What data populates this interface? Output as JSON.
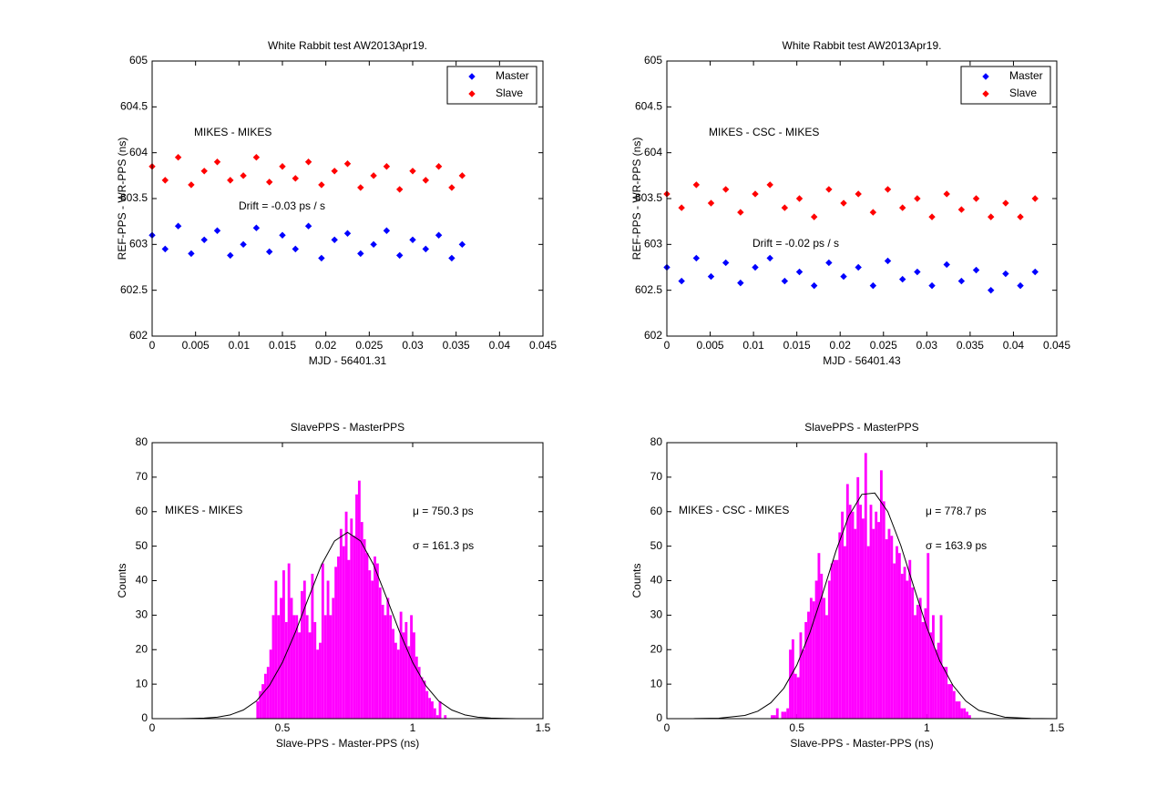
{
  "chart_data": [
    {
      "type": "scatter",
      "title": "White Rabbit test AW2013Apr19.",
      "xlabel": "MJD - 56401.31",
      "ylabel": "REF-PPS - WR-PPS (ns)",
      "annotations": [
        "MIKES - MIKES",
        "Drift = -0.03 ps / s"
      ],
      "x": [
        0,
        0.0015,
        0.003,
        0.0045,
        0.006,
        0.0075,
        0.009,
        0.0105,
        0.012,
        0.0135,
        0.015,
        0.0165,
        0.018,
        0.0195,
        0.021,
        0.0225,
        0.024,
        0.0255,
        0.027,
        0.0285,
        0.03,
        0.0315,
        0.033,
        0.0345,
        0.0357
      ],
      "series": [
        {
          "name": "Master",
          "color": "#0000ff",
          "values": [
            603.1,
            602.95,
            603.2,
            602.9,
            603.05,
            603.15,
            602.88,
            603.0,
            603.18,
            602.92,
            603.1,
            602.95,
            603.2,
            602.85,
            603.05,
            603.12,
            602.9,
            603.0,
            603.15,
            602.88,
            603.05,
            602.95,
            603.1,
            602.85,
            603.0
          ]
        },
        {
          "name": "Slave",
          "color": "#ff0000",
          "values": [
            603.85,
            603.7,
            603.95,
            603.65,
            603.8,
            603.9,
            603.7,
            603.75,
            603.95,
            603.68,
            603.85,
            603.72,
            603.9,
            603.65,
            603.8,
            603.88,
            603.62,
            603.75,
            603.85,
            603.6,
            603.8,
            603.7,
            603.85,
            603.62,
            603.75
          ]
        }
      ],
      "xlim": [
        0,
        0.045
      ],
      "xticks": [
        0,
        0.005,
        0.01,
        0.015,
        0.02,
        0.025,
        0.03,
        0.035,
        0.04,
        0.045
      ],
      "ylim": [
        602,
        605
      ],
      "yticks": [
        602,
        602.5,
        603,
        603.5,
        604,
        604.5,
        605
      ],
      "legend": "upper right"
    },
    {
      "type": "scatter",
      "title": "White Rabbit test AW2013Apr19.",
      "xlabel": "MJD - 56401.43",
      "ylabel": "REF-PPS - WR-PPS (ns)",
      "annotations": [
        "MIKES - CSC - MIKES",
        "Drift = -0.02 ps / s"
      ],
      "x": [
        0,
        0.0017,
        0.0034,
        0.0051,
        0.0068,
        0.0085,
        0.0102,
        0.0119,
        0.0136,
        0.0153,
        0.017,
        0.0187,
        0.0204,
        0.0221,
        0.0238,
        0.0255,
        0.0272,
        0.0289,
        0.0306,
        0.0323,
        0.034,
        0.0357,
        0.0374,
        0.0391,
        0.0408,
        0.0425
      ],
      "series": [
        {
          "name": "Master",
          "color": "#0000ff",
          "values": [
            602.75,
            602.6,
            602.85,
            602.65,
            602.8,
            602.58,
            602.75,
            602.85,
            602.6,
            602.7,
            602.55,
            602.8,
            602.65,
            602.75,
            602.55,
            602.82,
            602.62,
            602.7,
            602.55,
            602.78,
            602.6,
            602.72,
            602.5,
            602.68,
            602.55,
            602.7
          ]
        },
        {
          "name": "Slave",
          "color": "#ff0000",
          "values": [
            603.55,
            603.4,
            603.65,
            603.45,
            603.6,
            603.35,
            603.55,
            603.65,
            603.4,
            603.5,
            603.3,
            603.6,
            603.45,
            603.55,
            603.35,
            603.6,
            603.4,
            603.5,
            603.3,
            603.55,
            603.38,
            603.5,
            603.3,
            603.45,
            603.3,
            603.5
          ]
        }
      ],
      "xlim": [
        0,
        0.045
      ],
      "xticks": [
        0,
        0.005,
        0.01,
        0.015,
        0.02,
        0.025,
        0.03,
        0.035,
        0.04,
        0.045
      ],
      "ylim": [
        602,
        605
      ],
      "yticks": [
        602,
        602.5,
        603,
        603.5,
        604,
        604.5,
        605
      ],
      "legend": "upper right"
    },
    {
      "type": "histogram",
      "title": "SlavePPS - MasterPPS",
      "xlabel": "Slave-PPS - Master-PPS (ns)",
      "ylabel": "Counts",
      "annotations": [
        "MIKES - MIKES",
        "μ = 750.3 ps",
        "σ = 161.3 ps"
      ],
      "color": "#ff00ff",
      "bins": [
        0.4,
        0.41,
        0.42,
        0.43,
        0.44,
        0.45,
        0.46,
        0.47,
        0.48,
        0.49,
        0.5,
        0.51,
        0.52,
        0.53,
        0.54,
        0.55,
        0.56,
        0.57,
        0.58,
        0.59,
        0.6,
        0.61,
        0.62,
        0.63,
        0.64,
        0.65,
        0.66,
        0.67,
        0.68,
        0.69,
        0.7,
        0.71,
        0.72,
        0.73,
        0.74,
        0.75,
        0.76,
        0.77,
        0.78,
        0.79,
        0.8,
        0.81,
        0.82,
        0.83,
        0.84,
        0.85,
        0.86,
        0.87,
        0.88,
        0.89,
        0.9,
        0.91,
        0.92,
        0.93,
        0.94,
        0.95,
        0.96,
        0.97,
        0.98,
        0.99,
        1.0,
        1.01,
        1.02,
        1.03,
        1.04,
        1.05,
        1.06,
        1.07,
        1.08,
        1.09,
        1.1,
        1.11,
        1.12,
        1.13
      ],
      "values": [
        5,
        8,
        10,
        13,
        15,
        20,
        30,
        40,
        30,
        35,
        43,
        28,
        45,
        35,
        30,
        30,
        25,
        37,
        40,
        30,
        25,
        42,
        28,
        20,
        22,
        45,
        30,
        40,
        30,
        35,
        44,
        47,
        55,
        50,
        60,
        46,
        58,
        53,
        65,
        69,
        57,
        52,
        48,
        43,
        40,
        47,
        45,
        38,
        33,
        30,
        35,
        30,
        26,
        22,
        20,
        31,
        25,
        28,
        21,
        30,
        25,
        18,
        15,
        12,
        11,
        8,
        6,
        5,
        3,
        1,
        5,
        0,
        1
      ],
      "curve": {
        "color": "#000000",
        "x": [
          0,
          0.05,
          0.1,
          0.15,
          0.2,
          0.25,
          0.3,
          0.35,
          0.4,
          0.45,
          0.5,
          0.55,
          0.6,
          0.65,
          0.7,
          0.75,
          0.8,
          0.85,
          0.9,
          0.95,
          1.0,
          1.05,
          1.1,
          1.15,
          1.2,
          1.25,
          1.3,
          1.35,
          1.4,
          1.45,
          1.5
        ],
        "values": [
          0,
          0.004,
          0.016,
          0.053,
          0.16,
          0.44,
          1.1,
          2.5,
          5.1,
          9.6,
          16.3,
          25.1,
          35.0,
          44.6,
          51.5,
          54,
          51.5,
          44.6,
          35.0,
          25.1,
          16.3,
          9.6,
          5.1,
          2.5,
          1.1,
          0.44,
          0.16,
          0.053,
          0.016,
          0.004,
          0
        ]
      },
      "xlim": [
        0,
        1.5
      ],
      "xticks": [
        0,
        0.5,
        1,
        1.5
      ],
      "ylim": [
        0,
        80
      ],
      "yticks": [
        0,
        10,
        20,
        30,
        40,
        50,
        60,
        70,
        80
      ]
    },
    {
      "type": "histogram",
      "title": "SlavePPS - MasterPPS",
      "xlabel": "Slave-PPS - Master-PPS (ns)",
      "ylabel": "Counts",
      "annotations": [
        "MIKES - CSC - MIKES",
        "μ = 778.7 ps",
        "σ = 163.9 ps"
      ],
      "color": "#ff00ff",
      "bins": [
        0.4,
        0.41,
        0.42,
        0.43,
        0.44,
        0.45,
        0.46,
        0.47,
        0.48,
        0.49,
        0.5,
        0.51,
        0.52,
        0.53,
        0.54,
        0.55,
        0.56,
        0.57,
        0.58,
        0.59,
        0.6,
        0.61,
        0.62,
        0.63,
        0.64,
        0.65,
        0.66,
        0.67,
        0.68,
        0.69,
        0.7,
        0.71,
        0.72,
        0.73,
        0.74,
        0.75,
        0.76,
        0.77,
        0.78,
        0.79,
        0.8,
        0.81,
        0.82,
        0.83,
        0.84,
        0.85,
        0.86,
        0.87,
        0.88,
        0.89,
        0.9,
        0.91,
        0.92,
        0.93,
        0.94,
        0.95,
        0.96,
        0.97,
        0.98,
        0.99,
        1.0,
        1.01,
        1.02,
        1.03,
        1.04,
        1.05,
        1.06,
        1.07,
        1.08,
        1.09,
        1.1,
        1.11,
        1.12,
        1.13,
        1.14,
        1.15,
        1.16,
        1.17
      ],
      "values": [
        1,
        1,
        3,
        0,
        2,
        2,
        3,
        20,
        23,
        13,
        12,
        25,
        20,
        28,
        31,
        35,
        34,
        40,
        48,
        42,
        35,
        30,
        40,
        45,
        46,
        46,
        54,
        60,
        50,
        68,
        62,
        60,
        55,
        70,
        62,
        58,
        77,
        50,
        62,
        55,
        60,
        57,
        72,
        63,
        52,
        55,
        53,
        45,
        50,
        48,
        42,
        44,
        40,
        46,
        38,
        30,
        33,
        35,
        28,
        32,
        48,
        25,
        30,
        20,
        22,
        30,
        15,
        15,
        10,
        10,
        8,
        5,
        5,
        3,
        3,
        2,
        1
      ],
      "curve": {
        "color": "#000000",
        "x": [
          0,
          0.1,
          0.2,
          0.3,
          0.35,
          0.4,
          0.45,
          0.5,
          0.55,
          0.6,
          0.65,
          0.7,
          0.75,
          0.8,
          0.85,
          0.9,
          0.95,
          1.0,
          1.05,
          1.1,
          1.15,
          1.2,
          1.3,
          1.4,
          1.5
        ],
        "values": [
          0,
          0.012,
          0.13,
          0.92,
          2.16,
          4.6,
          8.8,
          15.5,
          24.9,
          36.4,
          48.5,
          58.8,
          65.0,
          65.4,
          60.0,
          50.2,
          38.2,
          26.5,
          16.7,
          9.7,
          5.1,
          2.4,
          0.42,
          0.05,
          0
        ]
      },
      "xlim": [
        0,
        1.5
      ],
      "xticks": [
        0,
        0.5,
        1,
        1.5
      ],
      "ylim": [
        0,
        80
      ],
      "yticks": [
        0,
        10,
        20,
        30,
        40,
        50,
        60,
        70,
        80
      ]
    }
  ]
}
